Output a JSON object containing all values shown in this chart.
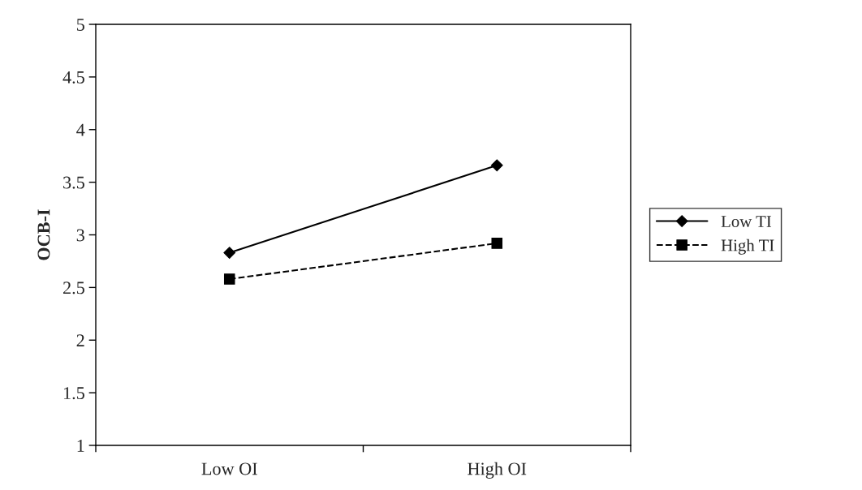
{
  "chart_data": {
    "type": "line",
    "ylabel": "OCB-I",
    "categories": [
      "Low OI",
      "High OI"
    ],
    "series": [
      {
        "name": "Low TI",
        "color": "#000000",
        "values": [
          2.83,
          3.66
        ],
        "marker": "diamond",
        "line_style": "solid"
      },
      {
        "name": "High TI",
        "color": "#000000",
        "values": [
          2.58,
          2.92
        ],
        "marker": "square",
        "line_style": "dashed"
      }
    ],
    "ylim": [
      1,
      5
    ],
    "yticks": [
      1,
      1.5,
      2,
      2.5,
      3,
      3.5,
      4,
      4.5,
      5
    ],
    "grid": false,
    "legend": "right"
  }
}
